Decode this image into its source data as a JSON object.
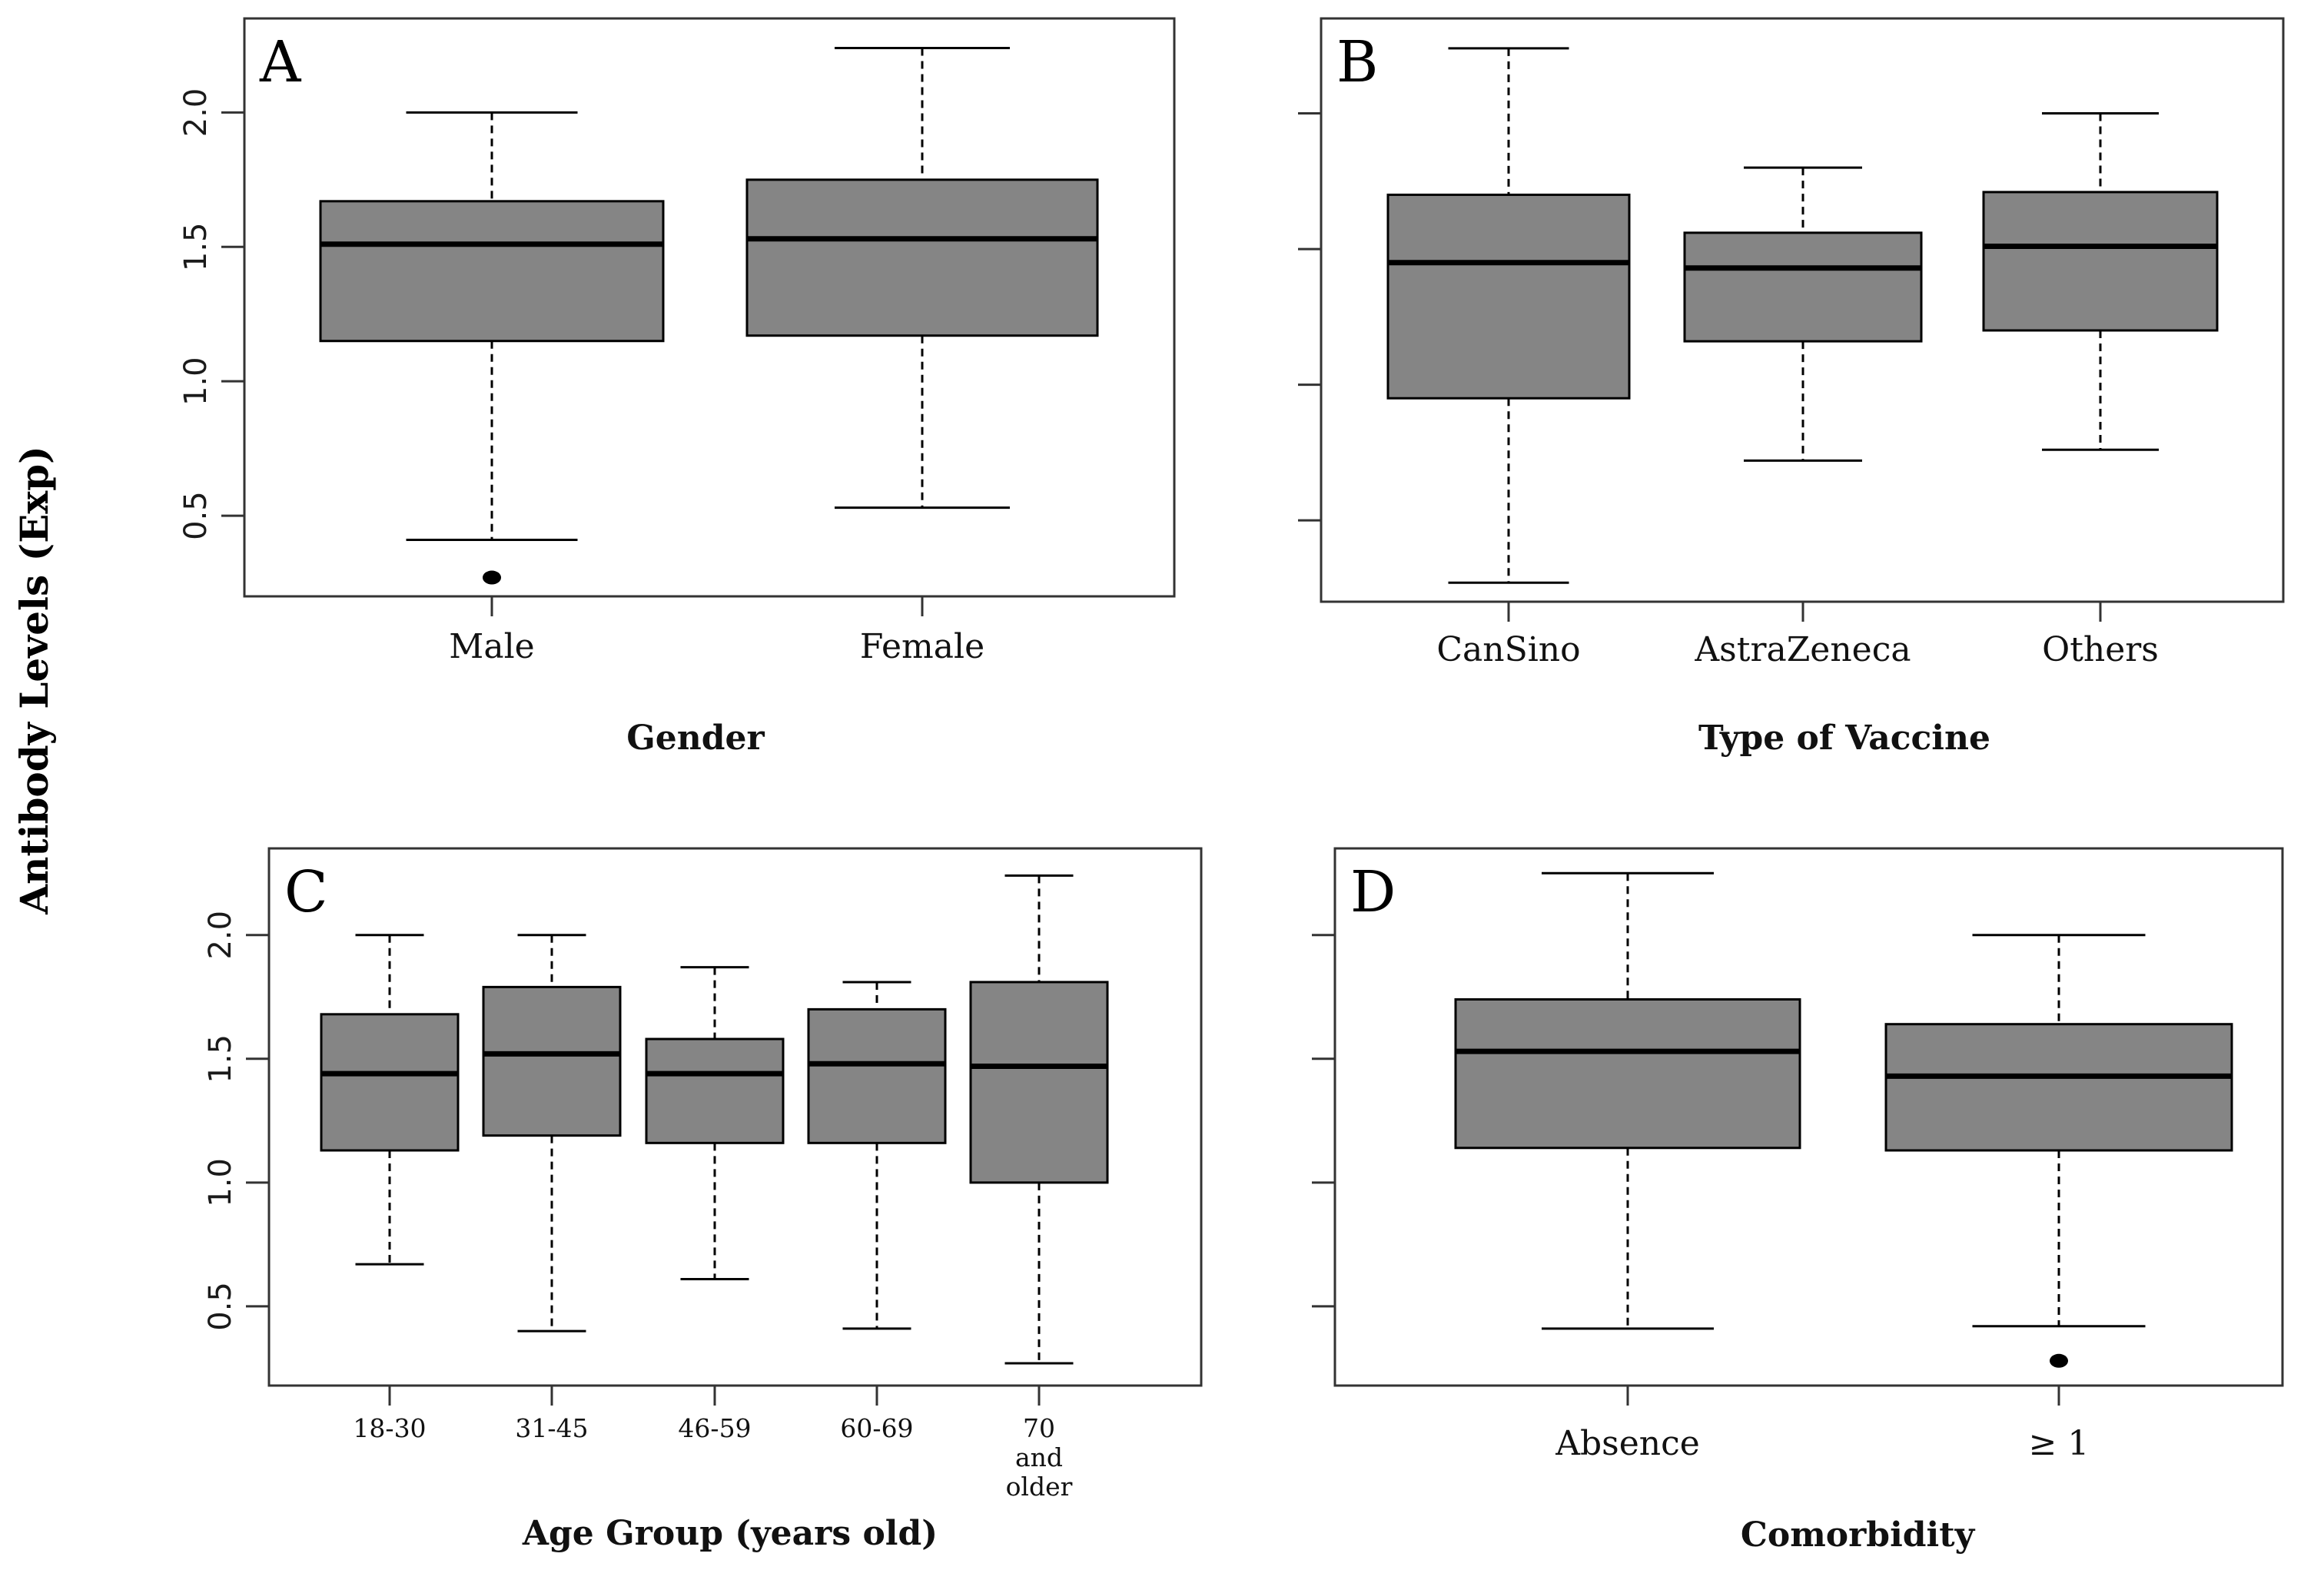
{
  "figure": {
    "ylabel": "Antibody Levels (Exp)",
    "box_fill": "#858585",
    "line_color": "#000000"
  },
  "chart_data": [
    {
      "type": "box",
      "panel": "A",
      "xlabel": "Gender",
      "ylim": [
        0.2,
        2.35
      ],
      "yticks": [
        "0.5",
        "1.0",
        "1.5",
        "2.0"
      ],
      "show_tick_labels": true,
      "categories": [
        {
          "label": [
            "Male"
          ],
          "min": 0.41,
          "q1": 1.15,
          "median": 1.51,
          "q3": 1.67,
          "max": 2.0,
          "outliers": [
            0.27
          ]
        },
        {
          "label": [
            "Female"
          ],
          "min": 0.53,
          "q1": 1.17,
          "median": 1.53,
          "q3": 1.75,
          "max": 2.24,
          "outliers": []
        }
      ]
    },
    {
      "type": "box",
      "panel": "B",
      "xlabel": "Type of Vaccine",
      "ylim": [
        0.2,
        2.35
      ],
      "yticks": [
        "0.5",
        "1.0",
        "1.5",
        "2.0"
      ],
      "show_tick_labels": false,
      "categories": [
        {
          "label": [
            "CanSino"
          ],
          "min": 0.27,
          "q1": 0.95,
          "median": 1.45,
          "q3": 1.7,
          "max": 2.24,
          "outliers": []
        },
        {
          "label": [
            "AstraZeneca"
          ],
          "min": 0.72,
          "q1": 1.16,
          "median": 1.43,
          "q3": 1.56,
          "max": 1.8,
          "outliers": []
        },
        {
          "label": [
            "Others"
          ],
          "min": 0.76,
          "q1": 1.2,
          "median": 1.51,
          "q3": 1.71,
          "max": 2.0,
          "outliers": []
        }
      ]
    },
    {
      "type": "box",
      "panel": "C",
      "xlabel": "Age Group (years old)",
      "ylim": [
        0.18,
        2.35
      ],
      "yticks": [
        "0.5",
        "1.0",
        "1.5",
        "2.0"
      ],
      "show_tick_labels": true,
      "categories": [
        {
          "label": [
            "18-30"
          ],
          "min": 0.67,
          "q1": 1.13,
          "median": 1.44,
          "q3": 1.68,
          "max": 2.0,
          "outliers": []
        },
        {
          "label": [
            "31-45"
          ],
          "min": 0.4,
          "q1": 1.19,
          "median": 1.52,
          "q3": 1.79,
          "max": 2.0,
          "outliers": []
        },
        {
          "label": [
            "46-59"
          ],
          "min": 0.61,
          "q1": 1.16,
          "median": 1.44,
          "q3": 1.58,
          "max": 1.87,
          "outliers": []
        },
        {
          "label": [
            "60-69"
          ],
          "min": 0.41,
          "q1": 1.16,
          "median": 1.48,
          "q3": 1.7,
          "max": 1.81,
          "outliers": []
        },
        {
          "label": [
            "70",
            "and",
            "older"
          ],
          "min": 0.27,
          "q1": 1.0,
          "median": 1.47,
          "q3": 1.81,
          "max": 2.24,
          "outliers": []
        }
      ]
    },
    {
      "type": "box",
      "panel": "D",
      "xlabel": "Comorbidity",
      "ylim": [
        0.18,
        2.35
      ],
      "yticks": [
        "0.5",
        "1.0",
        "1.5",
        "2.0"
      ],
      "show_tick_labels": false,
      "categories": [
        {
          "label": [
            "Absence"
          ],
          "min": 0.41,
          "q1": 1.14,
          "median": 1.53,
          "q3": 1.74,
          "max": 2.25,
          "outliers": []
        },
        {
          "label": [
            "≥ 1"
          ],
          "min": 0.42,
          "q1": 1.13,
          "median": 1.43,
          "q3": 1.64,
          "max": 2.0,
          "outliers": [
            0.28
          ]
        }
      ]
    }
  ]
}
